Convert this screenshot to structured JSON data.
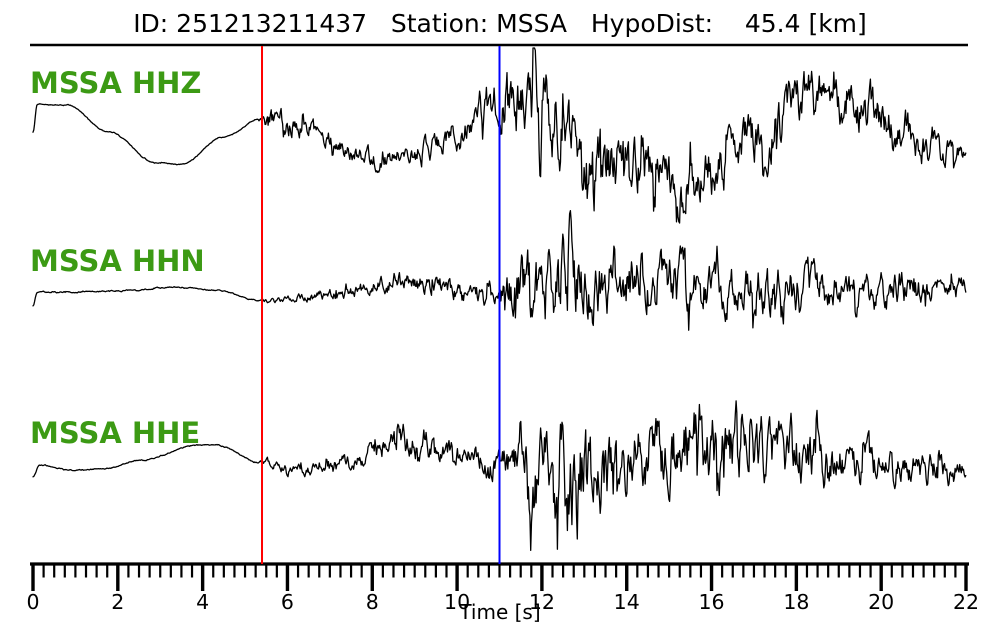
{
  "header": {
    "title": "ID: 251213211437   Station: MSSA   HypoDist:    45.4 [km]"
  },
  "event": {
    "id": "251213211437",
    "station": "MSSA",
    "hypodist": "45.4 [km]"
  },
  "chart_data": {
    "type": "line",
    "title": "ID: 251213211437   Station: MSSA   HypoDist:    45.4 [km]",
    "xlabel": "Time [s]",
    "x_range": [
      0,
      22
    ],
    "x_major_ticks": [
      0,
      2,
      4,
      6,
      8,
      10,
      12,
      14,
      16,
      18,
      20,
      22
    ],
    "x_minor_tick_step": 0.25,
    "grid": false,
    "trace_color": "#000000",
    "picks": [
      {
        "name": "p-pick-line",
        "time": 5.4,
        "color": "#ff0000"
      },
      {
        "name": "s-pick-line",
        "time": 11.0,
        "color": "#0000ff"
      }
    ],
    "series": [
      {
        "name": "MSSA HHZ",
        "channel": "HHZ",
        "label_color": "#3c9a14",
        "seed": 12,
        "baseline": [
          [
            0,
            8
          ],
          [
            0.1,
            36
          ],
          [
            0.8,
            35
          ],
          [
            1.8,
            8
          ],
          [
            2.9,
            -23
          ],
          [
            3.5,
            -24
          ],
          [
            4.5,
            3
          ],
          [
            5.4,
            22
          ],
          [
            6.5,
            12
          ],
          [
            7.5,
            -12
          ],
          [
            8.2,
            -20
          ],
          [
            9,
            -12
          ],
          [
            10,
            5
          ],
          [
            10.7,
            35
          ],
          [
            11.3,
            46
          ],
          [
            12,
            32
          ],
          [
            13,
            6
          ],
          [
            14,
            -20
          ],
          [
            15,
            -45
          ],
          [
            15.8,
            -40
          ],
          [
            17,
            8
          ],
          [
            18.3,
            40
          ],
          [
            19.2,
            40
          ],
          [
            20.3,
            15
          ],
          [
            21.2,
            -5
          ],
          [
            22,
            -13
          ]
        ],
        "envelope": [
          [
            0,
            0.6
          ],
          [
            5.3,
            0.6
          ],
          [
            5.55,
            13
          ],
          [
            6.5,
            11
          ],
          [
            7.5,
            10
          ],
          [
            8.5,
            10
          ],
          [
            9.5,
            12
          ],
          [
            10.3,
            16
          ],
          [
            10.9,
            24
          ],
          [
            11.4,
            38
          ],
          [
            12,
            42
          ],
          [
            12.8,
            38
          ],
          [
            13.6,
            32
          ],
          [
            14.5,
            28
          ],
          [
            15.5,
            26
          ],
          [
            16.5,
            26
          ],
          [
            17.5,
            28
          ],
          [
            18.5,
            28
          ],
          [
            19.5,
            26
          ],
          [
            20.5,
            22
          ],
          [
            21.3,
            18
          ],
          [
            22,
            14
          ]
        ],
        "spikes": [
          [
            11.95,
            -48
          ],
          [
            12.4,
            -42
          ]
        ]
      },
      {
        "name": "MSSA HHN",
        "channel": "HHN",
        "label_color": "#3c9a14",
        "seed": 47,
        "baseline": [
          [
            0,
            -16
          ],
          [
            0.1,
            -2
          ],
          [
            1,
            -2
          ],
          [
            2,
            -1
          ],
          [
            3.4,
            3
          ],
          [
            4.3,
            0
          ],
          [
            5.4,
            -11
          ],
          [
            6.3,
            -8
          ],
          [
            7.2,
            -4
          ],
          [
            8.5,
            7
          ],
          [
            9.4,
            6
          ],
          [
            10.3,
            -4
          ],
          [
            11,
            -2
          ],
          [
            12,
            0
          ],
          [
            13,
            2
          ],
          [
            14,
            2
          ],
          [
            15,
            4
          ],
          [
            16,
            5
          ],
          [
            17,
            2
          ],
          [
            18,
            2
          ],
          [
            19,
            -1
          ],
          [
            20,
            -2
          ],
          [
            21,
            0
          ],
          [
            22,
            0
          ]
        ],
        "envelope": [
          [
            0,
            0.7
          ],
          [
            5.3,
            0.7
          ],
          [
            5.55,
            3
          ],
          [
            6.5,
            5
          ],
          [
            7.5,
            7
          ],
          [
            8.5,
            9
          ],
          [
            9.5,
            11
          ],
          [
            10.4,
            13
          ],
          [
            11,
            16
          ],
          [
            11.5,
            32
          ],
          [
            12,
            38
          ],
          [
            12.6,
            50
          ],
          [
            13,
            38
          ],
          [
            13.8,
            32
          ],
          [
            14.6,
            30
          ],
          [
            15.5,
            27
          ],
          [
            16.3,
            24
          ],
          [
            16.9,
            28
          ],
          [
            17.6,
            27
          ],
          [
            18.4,
            22
          ],
          [
            19.2,
            18
          ],
          [
            20,
            18
          ],
          [
            20.7,
            22
          ],
          [
            21.4,
            14
          ],
          [
            22,
            11
          ]
        ],
        "spikes": [
          [
            12.67,
            42
          ]
        ]
      },
      {
        "name": "MSSA HHE",
        "channel": "HHE",
        "label_color": "#3c9a14",
        "seed": 83,
        "baseline": [
          [
            0,
            -12
          ],
          [
            0.15,
            0
          ],
          [
            0.9,
            -5
          ],
          [
            1.6,
            -4
          ],
          [
            2.6,
            5
          ],
          [
            3.9,
            20
          ],
          [
            4.3,
            20
          ],
          [
            5.4,
            2
          ],
          [
            6.2,
            -7
          ],
          [
            7,
            -3
          ],
          [
            8,
            15
          ],
          [
            8.8,
            23
          ],
          [
            9.4,
            20
          ],
          [
            10.2,
            8
          ],
          [
            11,
            0
          ],
          [
            11.8,
            -15
          ],
          [
            12.5,
            -25
          ],
          [
            13.2,
            -17
          ],
          [
            14,
            0
          ],
          [
            15,
            18
          ],
          [
            15.8,
            24
          ],
          [
            16.6,
            18
          ],
          [
            17.5,
            8
          ],
          [
            18.5,
            3
          ],
          [
            19.5,
            -2
          ],
          [
            20.5,
            -4
          ],
          [
            21.2,
            -6
          ],
          [
            22,
            -8
          ]
        ],
        "envelope": [
          [
            0,
            0.7
          ],
          [
            5.3,
            0.7
          ],
          [
            5.55,
            5
          ],
          [
            6.2,
            6
          ],
          [
            7,
            8
          ],
          [
            8,
            12
          ],
          [
            8.8,
            16
          ],
          [
            9.4,
            14
          ],
          [
            10.1,
            12
          ],
          [
            10.8,
            14
          ],
          [
            11.3,
            24
          ],
          [
            11.9,
            45
          ],
          [
            12.4,
            60
          ],
          [
            12.9,
            52
          ],
          [
            13.4,
            40
          ],
          [
            14.2,
            35
          ],
          [
            15,
            40
          ],
          [
            15.7,
            42
          ],
          [
            16.4,
            38
          ],
          [
            17.2,
            34
          ],
          [
            18,
            30
          ],
          [
            19,
            25
          ],
          [
            20,
            20
          ],
          [
            21,
            17
          ],
          [
            22,
            14
          ]
        ],
        "spikes": [
          [
            11.7,
            -40
          ],
          [
            12.36,
            -65
          ],
          [
            12.83,
            -48
          ]
        ]
      }
    ]
  }
}
